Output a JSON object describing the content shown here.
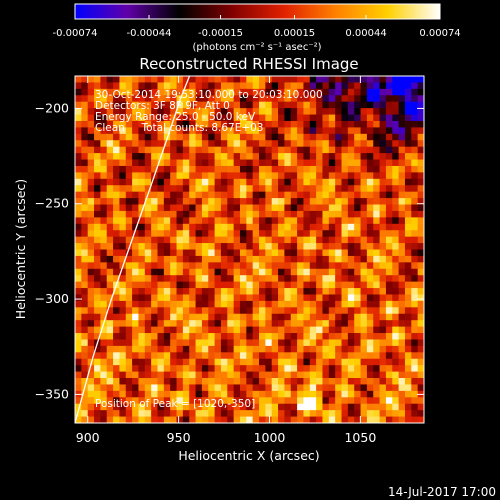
{
  "chart_data": {
    "type": "heatmap",
    "title": "Reconstructed RHESSI Image",
    "xlabel": "Heliocentric X (arcsec)",
    "ylabel": "Heliocentric Y (arcsec)",
    "xlim": [
      893,
      1085
    ],
    "ylim": [
      -365,
      -183
    ],
    "x_ticks": [
      900,
      950,
      1000,
      1050
    ],
    "y_ticks": [
      -200,
      -250,
      -300,
      -350
    ],
    "colorbar": {
      "range": [
        -0.00074,
        0.00074
      ],
      "tick_values": [
        -0.00074,
        -0.00044,
        -0.00015,
        0.00015,
        0.00044,
        0.00074
      ],
      "tick_labels": [
        "-0.00074",
        "-0.00044",
        "-0.00015",
        "0.00015",
        "0.00044",
        "0.00074"
      ],
      "unit_label": "(photons cm⁻² s⁻¹ asec⁻²)",
      "colormap": [
        "#0000ff",
        "#6000a8",
        "#000000",
        "#800000",
        "#e02000",
        "#ff8000",
        "#ffd000",
        "#ffffff"
      ]
    },
    "annotations": {
      "time_range": "30-Oct-2014 19:53:10.000 to 20:03:10.000",
      "detectors": "Detectors: 3F 8F 9F, Att 0",
      "energy_range": "Energy Range: 25.0 - 50.0 keV",
      "clean_counts": "Clean     Total counts: 8.67E+03",
      "peak": "Position of Peak = [1020,-350]"
    },
    "peak_position": [
      1020,
      -350
    ],
    "limb_curve": [
      [
        893,
        -365
      ],
      [
        903,
        -330
      ],
      [
        913,
        -300
      ],
      [
        924,
        -270
      ],
      [
        935,
        -240
      ],
      [
        944,
        -215
      ],
      [
        951,
        -195
      ],
      [
        956,
        -183
      ]
    ]
  },
  "footer": {
    "date": "14-Jul-2017 17:00"
  }
}
